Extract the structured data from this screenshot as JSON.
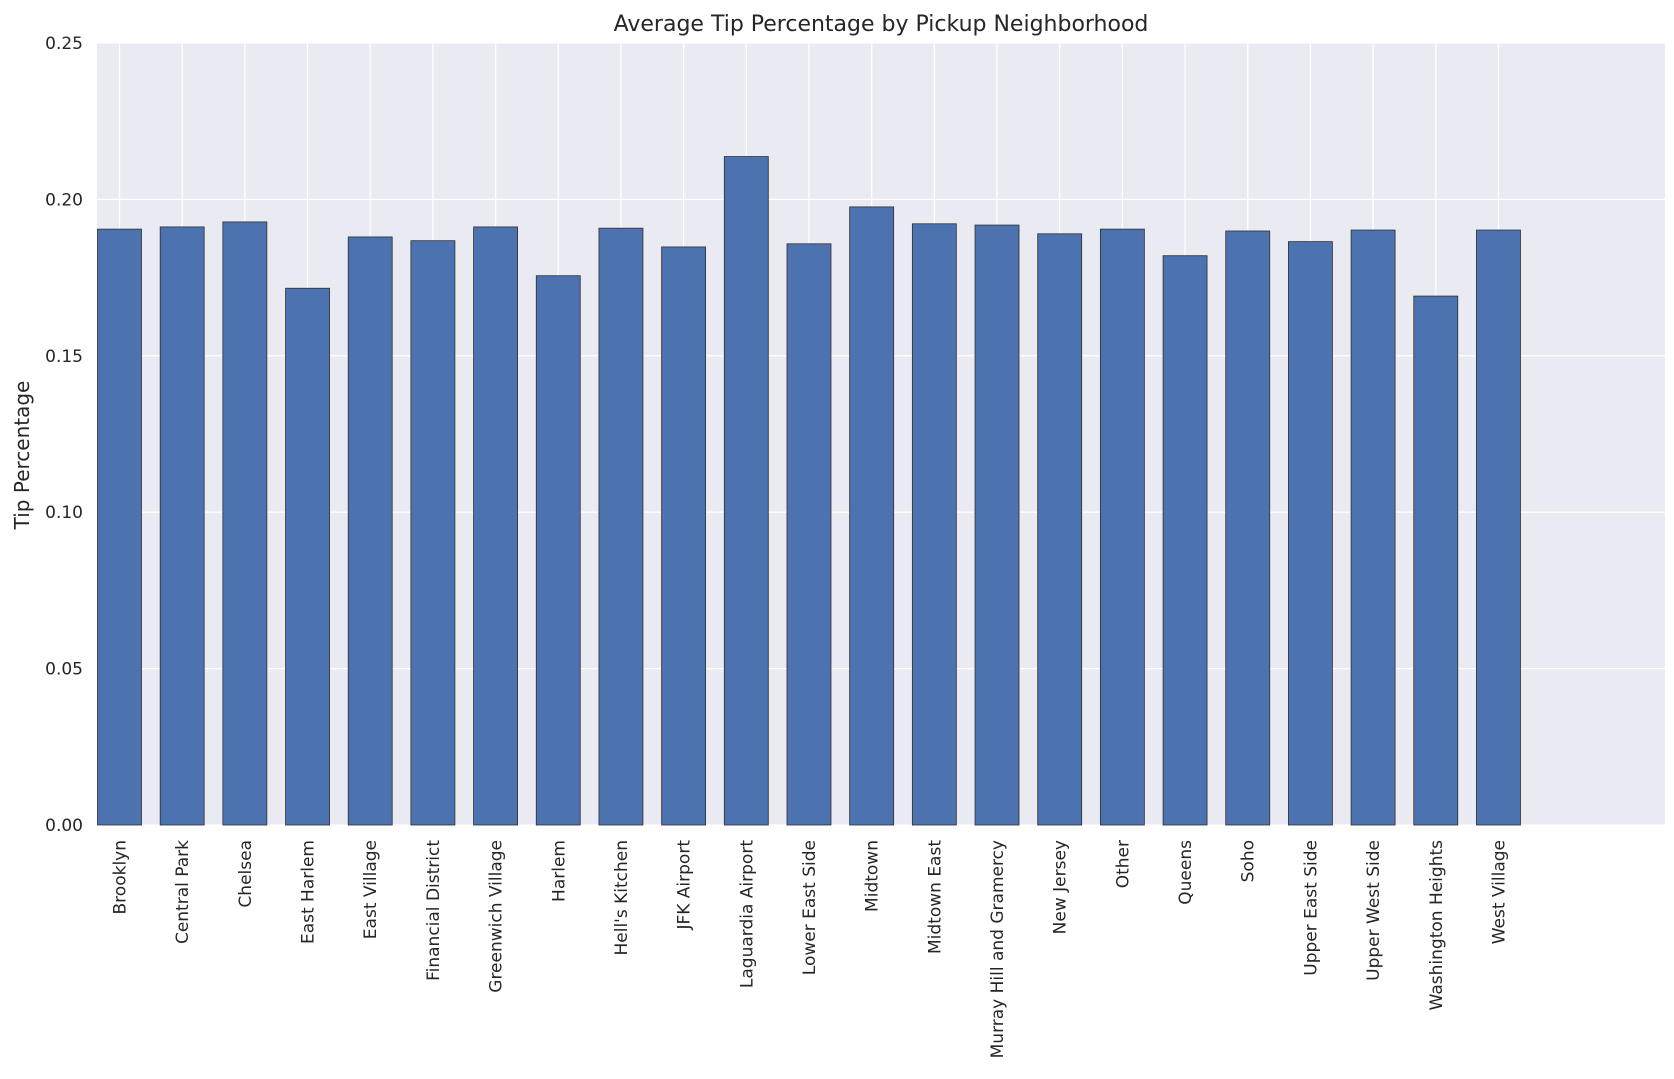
{
  "chart_data": {
    "type": "bar",
    "title": "Average Tip Percentage by Pickup Neighborhood",
    "xlabel": "",
    "ylabel": "Tip Percentage",
    "categories": [
      "Brooklyn",
      "Central Park",
      "Chelsea",
      "East Harlem",
      "East Village",
      "Financial District",
      "Greenwich Village",
      "Harlem",
      "Hell's Kitchen",
      "JFK Airport",
      "Laguardia Airport",
      "Lower East Side",
      "Midtown",
      "Midtown East",
      "Murray Hill and Gramercy",
      "New Jersey",
      "Other",
      "Queens",
      "Soho",
      "Upper East Side",
      "Upper West Side",
      "Washington Heights",
      "West Village"
    ],
    "values": [
      0.1905,
      0.1912,
      0.1928,
      0.1716,
      0.188,
      0.1868,
      0.1912,
      0.1756,
      0.1908,
      0.1848,
      0.2137,
      0.1858,
      0.1976,
      0.1922,
      0.1918,
      0.189,
      0.1905,
      0.182,
      0.1899,
      0.1865,
      0.1902,
      0.1691,
      0.1902
    ],
    "ylim": [
      0,
      0.25
    ],
    "yticks": [
      "0.00",
      "0.05",
      "0.10",
      "0.15",
      "0.20",
      "0.25"
    ],
    "grid": true,
    "bar_color": "#4c72b0",
    "background_color": "#eaeaf2",
    "grid_color": "#ffffff"
  }
}
